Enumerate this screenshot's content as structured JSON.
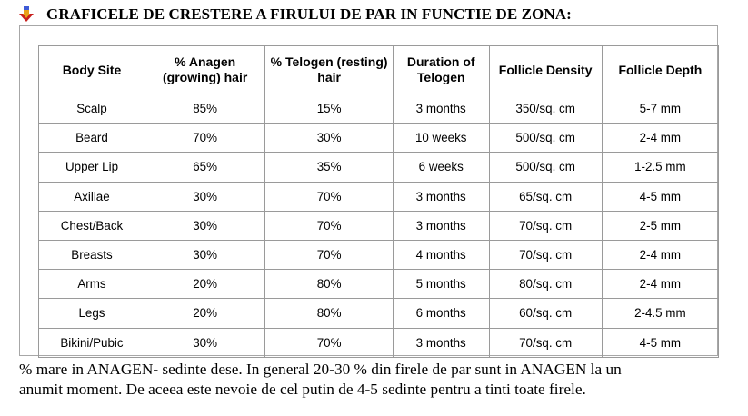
{
  "heading": {
    "icon": "down-arrow-bullet-icon",
    "text": "GRAFICELE DE CRESTERE A FIRULUI DE PAR IN FUNCTIE DE ZONA:"
  },
  "table": {
    "columns": [
      "Body Site",
      "% Anagen (growing) hair",
      "% Telogen (resting) hair",
      "Duration of Telogen",
      "Follicle Density",
      "Follicle Depth"
    ],
    "rows": [
      [
        "Scalp",
        "85%",
        "15%",
        "3 months",
        "350/sq. cm",
        "5-7 mm"
      ],
      [
        "Beard",
        "70%",
        "30%",
        "10 weeks",
        "500/sq. cm",
        "2-4 mm"
      ],
      [
        "Upper Lip",
        "65%",
        "35%",
        "6 weeks",
        "500/sq. cm",
        "1-2.5 mm"
      ],
      [
        "Axillae",
        "30%",
        "70%",
        "3 months",
        "65/sq. cm",
        "4-5 mm"
      ],
      [
        "Chest/Back",
        "30%",
        "70%",
        "3 months",
        "70/sq. cm",
        "2-5 mm"
      ],
      [
        "Breasts",
        "30%",
        "70%",
        "4 months",
        "70/sq. cm",
        "2-4 mm"
      ],
      [
        "Arms",
        "20%",
        "80%",
        "5 months",
        "80/sq. cm",
        "2-4 mm"
      ],
      [
        "Legs",
        "20%",
        "80%",
        "6 months",
        "60/sq. cm",
        "2-4.5 mm"
      ],
      [
        "Bikini/Pubic",
        "30%",
        "70%",
        "3 months",
        "70/sq. cm",
        "4-5 mm"
      ]
    ]
  },
  "note": {
    "line1": "% mare in ANAGEN- sedinte dese. In general 20-30 % din firele de par sunt in ANAGEN la un",
    "line2": "anumit moment. De aceea este nevoie de cel putin de 4-5 sedinte pentru a tinti toate firele."
  },
  "colors": {
    "icon_blue": "#3f5bd6",
    "icon_gold": "#e8a21a",
    "icon_red": "#c8201e"
  }
}
